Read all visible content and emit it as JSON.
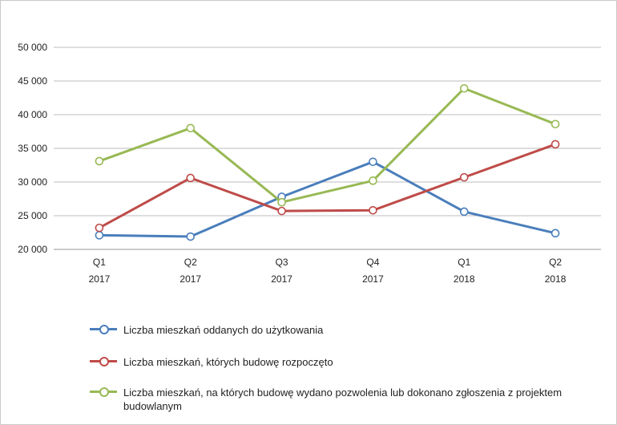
{
  "chart_data": {
    "type": "line",
    "categories": [
      "Q1\n2017",
      "Q2\n2017",
      "Q3\n2017",
      "Q4\n2017",
      "Q1\n2018",
      "Q2\n2018"
    ],
    "category_labels": [
      {
        "q": "Q1",
        "year": "2017"
      },
      {
        "q": "Q2",
        "year": "2017"
      },
      {
        "q": "Q3",
        "year": "2017"
      },
      {
        "q": "Q4",
        "year": "2017"
      },
      {
        "q": "Q1",
        "year": "2018"
      },
      {
        "q": "Q2",
        "year": "2018"
      }
    ],
    "y_ticks": [
      "20 000",
      "25 000",
      "30 000",
      "35 000",
      "40 000",
      "45 000",
      "50 000"
    ],
    "y_tick_values": [
      20000,
      25000,
      30000,
      35000,
      40000,
      45000,
      50000
    ],
    "ylim": [
      20000,
      50000
    ],
    "grid": "horizontal",
    "legend_position": "bottom",
    "series": [
      {
        "name": "Liczba mieszkań oddanych do użytkowania",
        "color": "#4a7ebb",
        "values": [
          22100,
          21900,
          27800,
          33000,
          25600,
          22400
        ]
      },
      {
        "name": "Liczba mieszkań, których budowę rozpoczęto",
        "color": "#be4b48",
        "values": [
          23200,
          30600,
          25700,
          25800,
          30700,
          35600
        ]
      },
      {
        "name": "Liczba mieszkań, na których budowę wydano pozwolenia lub dokonano zgłoszenia z projektem budowlanym",
        "color": "#98b954",
        "values": [
          33100,
          38000,
          27000,
          30200,
          43900,
          38600
        ]
      }
    ]
  }
}
